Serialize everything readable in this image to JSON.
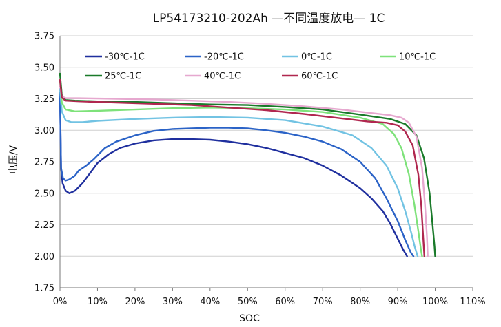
{
  "chart_data": {
    "type": "line",
    "title": "LP54173210-202Ah —不同温度放电— 1C",
    "xlabel": "SOC",
    "ylabel": "电压/V",
    "xlim": [
      0,
      110
    ],
    "ylim": [
      1.75,
      3.75
    ],
    "x_ticks": [
      "0%",
      "10%",
      "20%",
      "30%",
      "40%",
      "50%",
      "60%",
      "70%",
      "80%",
      "90%",
      "100%",
      "110%"
    ],
    "y_ticks": [
      "1.75",
      "2.00",
      "2.25",
      "2.50",
      "2.75",
      "3.00",
      "3.25",
      "3.50",
      "3.75"
    ],
    "grid": "horizontal",
    "legend_position": "top",
    "series": [
      {
        "name": "-30℃-1C",
        "color": "#1f2f9e",
        "points": [
          [
            0,
            3.3
          ],
          [
            0.3,
            2.7
          ],
          [
            0.7,
            2.58
          ],
          [
            1.5,
            2.52
          ],
          [
            2.5,
            2.5
          ],
          [
            4,
            2.52
          ],
          [
            6,
            2.58
          ],
          [
            8,
            2.66
          ],
          [
            10,
            2.74
          ],
          [
            13,
            2.81
          ],
          [
            16,
            2.86
          ],
          [
            20,
            2.895
          ],
          [
            25,
            2.92
          ],
          [
            30,
            2.93
          ],
          [
            35,
            2.93
          ],
          [
            40,
            2.925
          ],
          [
            45,
            2.91
          ],
          [
            50,
            2.89
          ],
          [
            55,
            2.86
          ],
          [
            60,
            2.82
          ],
          [
            65,
            2.78
          ],
          [
            70,
            2.72
          ],
          [
            75,
            2.64
          ],
          [
            80,
            2.54
          ],
          [
            83,
            2.46
          ],
          [
            86,
            2.36
          ],
          [
            88,
            2.26
          ],
          [
            90,
            2.14
          ],
          [
            91.5,
            2.05
          ],
          [
            92.5,
            2.0
          ]
        ]
      },
      {
        "name": "-20℃-1C",
        "color": "#2b63c7",
        "points": [
          [
            0,
            3.3
          ],
          [
            0.3,
            2.7
          ],
          [
            0.8,
            2.62
          ],
          [
            1.5,
            2.6
          ],
          [
            2.5,
            2.61
          ],
          [
            4,
            2.64
          ],
          [
            5,
            2.68
          ],
          [
            7,
            2.72
          ],
          [
            9,
            2.77
          ],
          [
            12,
            2.86
          ],
          [
            15,
            2.91
          ],
          [
            20,
            2.96
          ],
          [
            25,
            2.995
          ],
          [
            30,
            3.01
          ],
          [
            35,
            3.015
          ],
          [
            40,
            3.02
          ],
          [
            45,
            3.02
          ],
          [
            50,
            3.015
          ],
          [
            55,
            3.0
          ],
          [
            60,
            2.98
          ],
          [
            65,
            2.95
          ],
          [
            70,
            2.91
          ],
          [
            75,
            2.85
          ],
          [
            80,
            2.75
          ],
          [
            84,
            2.62
          ],
          [
            87,
            2.46
          ],
          [
            90,
            2.28
          ],
          [
            92,
            2.13
          ],
          [
            93.5,
            2.03
          ],
          [
            94.2,
            2.0
          ]
        ]
      },
      {
        "name": "0℃-1C",
        "color": "#72c3e3",
        "points": [
          [
            0,
            3.33
          ],
          [
            0.5,
            3.15
          ],
          [
            1.5,
            3.08
          ],
          [
            3,
            3.065
          ],
          [
            6,
            3.065
          ],
          [
            10,
            3.075
          ],
          [
            20,
            3.09
          ],
          [
            30,
            3.1
          ],
          [
            40,
            3.105
          ],
          [
            50,
            3.1
          ],
          [
            60,
            3.08
          ],
          [
            70,
            3.03
          ],
          [
            78,
            2.96
          ],
          [
            83,
            2.86
          ],
          [
            87,
            2.72
          ],
          [
            90,
            2.54
          ],
          [
            92,
            2.36
          ],
          [
            93.5,
            2.2
          ],
          [
            94.5,
            2.08
          ],
          [
            95.3,
            2.0
          ]
        ]
      },
      {
        "name": "10℃-1C",
        "color": "#7ee27a",
        "points": [
          [
            0,
            3.4
          ],
          [
            0.5,
            3.22
          ],
          [
            1.5,
            3.165
          ],
          [
            4,
            3.15
          ],
          [
            10,
            3.155
          ],
          [
            20,
            3.165
          ],
          [
            30,
            3.175
          ],
          [
            40,
            3.18
          ],
          [
            50,
            3.175
          ],
          [
            60,
            3.165
          ],
          [
            70,
            3.145
          ],
          [
            80,
            3.1
          ],
          [
            86,
            3.05
          ],
          [
            89,
            2.97
          ],
          [
            91,
            2.86
          ],
          [
            93,
            2.65
          ],
          [
            94.5,
            2.4
          ],
          [
            95.5,
            2.2
          ],
          [
            96.2,
            2.05
          ],
          [
            96.5,
            2.0
          ]
        ]
      },
      {
        "name": "25℃-1C",
        "color": "#1a7a2a",
        "points": [
          [
            0,
            3.45
          ],
          [
            0.5,
            3.28
          ],
          [
            1.5,
            3.24
          ],
          [
            4,
            3.235
          ],
          [
            10,
            3.23
          ],
          [
            20,
            3.225
          ],
          [
            30,
            3.215
          ],
          [
            40,
            3.205
          ],
          [
            50,
            3.2
          ],
          [
            60,
            3.185
          ],
          [
            70,
            3.165
          ],
          [
            80,
            3.125
          ],
          [
            88,
            3.09
          ],
          [
            92,
            3.05
          ],
          [
            95,
            2.96
          ],
          [
            97,
            2.78
          ],
          [
            98.5,
            2.5
          ],
          [
            99.3,
            2.25
          ],
          [
            99.8,
            2.08
          ],
          [
            100,
            2.0
          ]
        ]
      },
      {
        "name": "40℃-1C",
        "color": "#e6a8cf",
        "points": [
          [
            0,
            3.35
          ],
          [
            0.5,
            3.27
          ],
          [
            1.5,
            3.255
          ],
          [
            5,
            3.255
          ],
          [
            15,
            3.25
          ],
          [
            25,
            3.245
          ],
          [
            35,
            3.235
          ],
          [
            45,
            3.225
          ],
          [
            55,
            3.21
          ],
          [
            65,
            3.19
          ],
          [
            75,
            3.165
          ],
          [
            82,
            3.14
          ],
          [
            88,
            3.12
          ],
          [
            91,
            3.1
          ],
          [
            93,
            3.06
          ],
          [
            95,
            2.95
          ],
          [
            96.5,
            2.7
          ],
          [
            97.3,
            2.4
          ],
          [
            97.8,
            2.15
          ],
          [
            98,
            2.0
          ]
        ]
      },
      {
        "name": "60℃-1C",
        "color": "#b0274f",
        "points": [
          [
            0,
            3.4
          ],
          [
            0.5,
            3.26
          ],
          [
            1.5,
            3.235
          ],
          [
            5,
            3.23
          ],
          [
            15,
            3.22
          ],
          [
            25,
            3.21
          ],
          [
            35,
            3.2
          ],
          [
            45,
            3.18
          ],
          [
            55,
            3.16
          ],
          [
            65,
            3.13
          ],
          [
            75,
            3.095
          ],
          [
            82,
            3.07
          ],
          [
            87,
            3.06
          ],
          [
            90,
            3.04
          ],
          [
            92,
            2.99
          ],
          [
            94,
            2.88
          ],
          [
            95.5,
            2.65
          ],
          [
            96.3,
            2.4
          ],
          [
            96.8,
            2.15
          ],
          [
            97.1,
            2.0
          ]
        ]
      }
    ]
  }
}
